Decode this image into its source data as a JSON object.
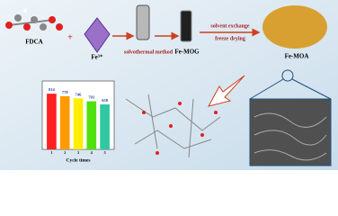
{
  "labels": {
    "fdca": "FDCA",
    "fe3": "Fe³⁺",
    "solvothermal": "solvothermal method",
    "femog": "Fe-MOG",
    "solvent_exchange": "solvent exchange",
    "freeze_drying": "freeze drying",
    "femoa": "Fe-MOA"
  },
  "inset_chart": {
    "type": "bar",
    "xlabel": "Cycle times",
    "categories": [
      "1",
      "2",
      "3",
      "4",
      "5"
    ],
    "values": [
      814,
      778,
      746,
      703,
      658
    ],
    "colors": [
      "#ff2020",
      "#ff9a00",
      "#ffee00",
      "#50e010",
      "#30c8a0"
    ],
    "ylim": [
      0,
      1000
    ]
  }
}
